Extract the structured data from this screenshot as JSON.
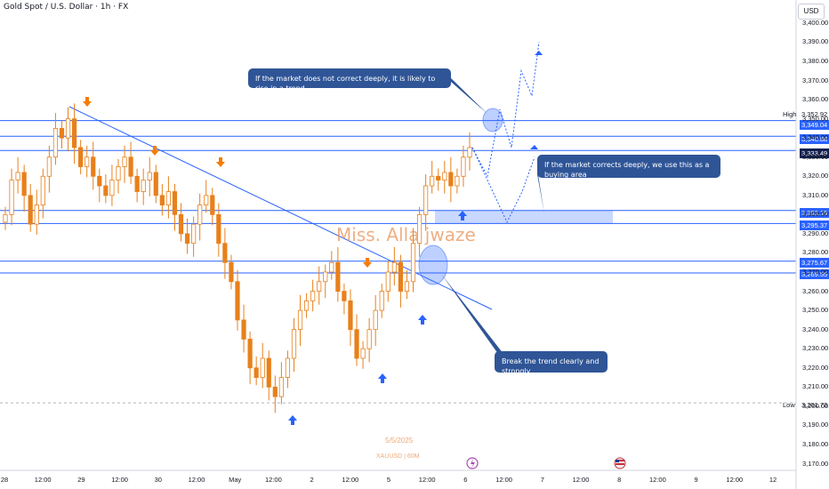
{
  "header": {
    "title": "Gold Spot / U.S. Dollar · 1h · FX"
  },
  "currency": "USD",
  "watermark": {
    "author": "Miss. Alla jwaze",
    "date": "5/5/2025",
    "symbol": "XAUUSD | 60M"
  },
  "annotations": {
    "callout_top": "If the market does not correct deeply, it is likely to rise in a trend",
    "callout_right": "If the market corrects deeply, we use this as a buying area",
    "callout_bottom": "Break the trend clearly and strongly"
  },
  "side_tags": {
    "high": "High",
    "low": "Low"
  },
  "price_labels": {
    "high": "3,352.92",
    "r1": "3,349.04",
    "r2": "3,340.88",
    "current": "3,333.49",
    "buy_top": "3,302.16",
    "buy_bottom": "3,295.37",
    "s1": "3,275.67",
    "s2": "3,269.55",
    "low": "3,201.73"
  },
  "colors": {
    "bull": "#089981",
    "bear": "#f7525f",
    "candle": "#e8801a",
    "level": "#2962ff",
    "arrow_up": "#2962ff",
    "arrow_down": "#f57c00",
    "callout": "#2f5597"
  },
  "chart_data": {
    "type": "candlestick",
    "title": "Gold Spot / U.S. Dollar · 1h · FX",
    "ylim": [
      3167,
      3412
    ],
    "y_ticks": [
      "3,400.00",
      "3,390.00",
      "3,380.00",
      "3,370.00",
      "3,360.00",
      "3,350.00",
      "3,340.00",
      "3,330.00",
      "3,320.00",
      "3,310.00",
      "3,300.00",
      "3,290.00",
      "3,280.00",
      "3,270.00",
      "3,260.00",
      "3,250.00",
      "3,240.00",
      "3,230.00",
      "3,220.00",
      "3,210.00",
      "3,200.00",
      "3,190.00",
      "3,180.00",
      "3,170.00"
    ],
    "x_ticks": [
      "28",
      "12:00",
      "29",
      "12:00",
      "30",
      "12:00",
      "May",
      "12:00",
      "2",
      "12:00",
      "5",
      "12:00",
      "6",
      "12:00",
      "7",
      "12:00",
      "8",
      "12:00",
      "9",
      "12:00",
      "12"
    ],
    "horizontal_levels": [
      3349.04,
      3340.88,
      3333.49,
      3302.16,
      3295.37,
      3275.67,
      3269.55,
      3201.73
    ],
    "buy_zone": [
      3295.37,
      3302.16
    ],
    "trendline": [
      {
        "x": "29",
        "y": 3355
      },
      {
        "x": "6 12:00",
        "y": 3255
      }
    ],
    "closes": [
      3300,
      3318,
      3322,
      3310,
      3295,
      3305,
      3320,
      3330,
      3345,
      3340,
      3350,
      3335,
      3325,
      3330,
      3320,
      3315,
      3310,
      3318,
      3325,
      3330,
      3320,
      3312,
      3318,
      3322,
      3310,
      3305,
      3312,
      3300,
      3290,
      3285,
      3295,
      3305,
      3310,
      3300,
      3285,
      3275,
      3265,
      3245,
      3235,
      3220,
      3215,
      3225,
      3210,
      3205,
      3215,
      3225,
      3240,
      3250,
      3255,
      3260,
      3265,
      3270,
      3275,
      3260,
      3255,
      3240,
      3225,
      3230,
      3240,
      3250,
      3260,
      3270,
      3275,
      3260,
      3265,
      3285,
      3300,
      3315,
      3320,
      3318,
      3322,
      3315,
      3320,
      3330,
      3335
    ],
    "scenario_paths": [
      {
        "name": "",
        "points": [
          3335,
          3320,
          3355,
          3335,
          3375,
          3362,
          3390
        ]
      },
      {
        "name": "",
        "points": [
          3335,
          3318,
          3296,
          3312,
          3330
        ]
      }
    ]
  }
}
